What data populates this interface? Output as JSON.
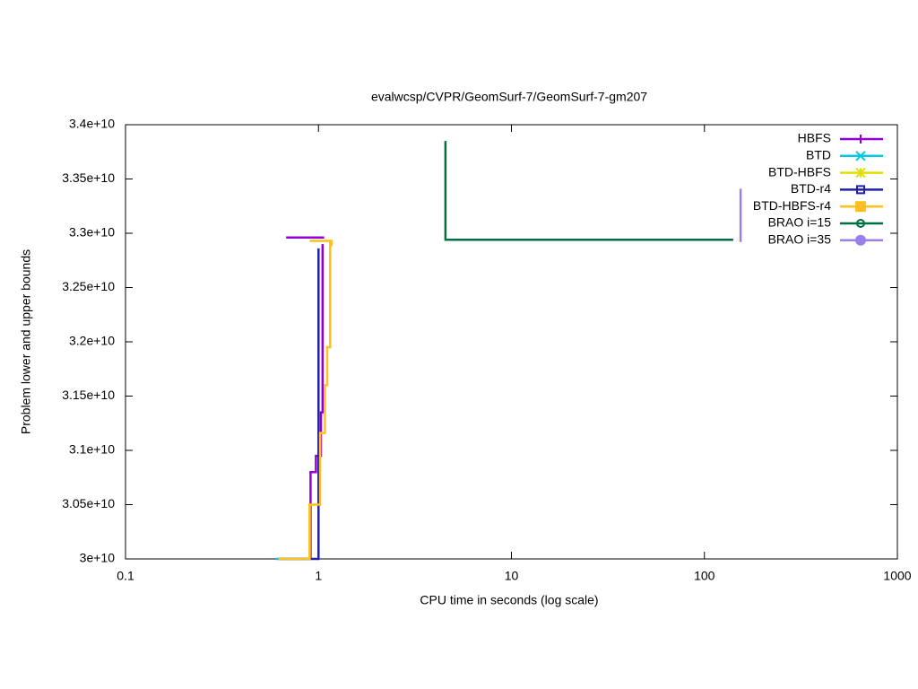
{
  "chart_data": {
    "type": "line",
    "title": "evalwcsp/CVPR/GeomSurf-7/GeomSurf-7-gm207",
    "xlabel": "CPU time in seconds (log scale)",
    "ylabel": "Problem lower and upper bounds",
    "xscale": "log",
    "xlim": [
      0.1,
      1000
    ],
    "xticks": [
      0.1,
      1,
      10,
      100,
      1000
    ],
    "ylim": [
      30000000000,
      34000000000
    ],
    "yticks": [
      {
        "value": 30000000000,
        "label": "3e+10"
      },
      {
        "value": 30500000000,
        "label": "3.05e+10"
      },
      {
        "value": 31000000000,
        "label": "3.1e+10"
      },
      {
        "value": 31500000000,
        "label": "3.15e+10"
      },
      {
        "value": 32000000000,
        "label": "3.2e+10"
      },
      {
        "value": 32500000000,
        "label": "3.25e+10"
      },
      {
        "value": 33000000000,
        "label": "3.3e+10"
      },
      {
        "value": 33500000000,
        "label": "3.35e+10"
      },
      {
        "value": 34000000000,
        "label": "3.4e+10"
      }
    ],
    "legend": "top-right",
    "series": [
      {
        "name": "HBFS",
        "color": "#9400d3",
        "marker": "plus",
        "x": [
          0.68,
          1.07,
          null,
          0.91,
          0.91,
          0.97,
          0.97,
          1.03,
          1.03,
          1.05,
          1.05
        ],
        "values": [
          32960000000,
          32960000000,
          null,
          30000000000,
          30800000000,
          30800000000,
          30950000000,
          30950000000,
          31350000000,
          31350000000,
          32900000000
        ]
      },
      {
        "name": "BTD",
        "color": "#00c8e0",
        "marker": "cross",
        "x": [
          0.6,
          0.9
        ],
        "values": [
          30000000000,
          30000000000
        ]
      },
      {
        "name": "BTD-HBFS",
        "color": "#e0e000",
        "marker": "star",
        "x": [
          0.9,
          0.9,
          1.0
        ],
        "values": [
          30000000000,
          30500000000,
          30500000000
        ]
      },
      {
        "name": "BTD-r4",
        "color": "#2020a8",
        "marker": "open-square",
        "x": [
          0.62,
          1.0,
          1.0
        ],
        "values": [
          30000000000,
          30000000000,
          32860000000
        ]
      },
      {
        "name": "BTD-HBFS-r4",
        "color": "#ffc020",
        "marker": "filled-square",
        "x": [
          0.62,
          0.9,
          0.9,
          1.02,
          1.02,
          1.08,
          1.08,
          1.11,
          1.11,
          1.15,
          1.15,
          1.17,
          1.17,
          null,
          0.9,
          1.17
        ],
        "values": [
          30000000000,
          30000000000,
          30500000000,
          30500000000,
          31160000000,
          31160000000,
          31600000000,
          31600000000,
          31950000000,
          31950000000,
          32930000000,
          32930000000,
          32880000000,
          null,
          32930000000,
          32930000000
        ]
      },
      {
        "name": "BRAO i=15",
        "color": "#007040",
        "marker": "open-circle",
        "x": [
          4.55,
          4.55,
          141
        ],
        "values": [
          33850000000,
          32940000000,
          32940000000
        ]
      },
      {
        "name": "BRAO i=35",
        "color": "#9a7fea",
        "marker": "filled-circle",
        "x": [
          154,
          154,
          156
        ],
        "values": [
          33410000000,
          32930000000,
          32930000000
        ]
      }
    ]
  }
}
